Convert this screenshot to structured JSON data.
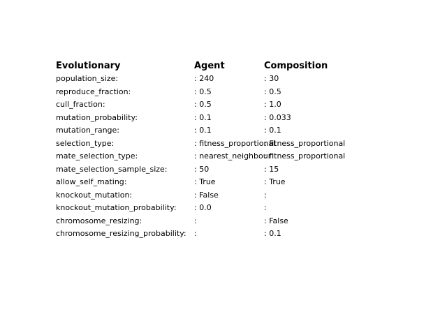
{
  "headers": [
    "Evolutionary",
    "Agent",
    "Composition"
  ],
  "rows": [
    {
      "key": "population_size:",
      "agent": ": 240",
      "composition": ": 30"
    },
    {
      "key": "reproduce_fraction:",
      "agent": ": 0.5",
      "composition": ": 0.5"
    },
    {
      "key": "cull_fraction:",
      "agent": ": 0.5",
      "composition": ": 1.0"
    },
    {
      "key": "mutation_probability:",
      "agent": ": 0.1",
      "composition": ": 0.033"
    },
    {
      "key": "mutation_range:",
      "agent": ": 0.1",
      "composition": ": 0.1"
    },
    {
      "key": "selection_type:",
      "agent": ": fitness_proportional",
      "composition": ": fitness_proportional"
    },
    {
      "key": "mate_selection_type:",
      "agent": ": nearest_neighbour",
      "composition": ": fitness_proportional"
    },
    {
      "key": "mate_selection_sample_size:",
      "agent": ": 50",
      "composition": ": 15"
    },
    {
      "key": "allow_self_mating:",
      "agent": ": True",
      "composition": ": True"
    },
    {
      "key": "knockout_mutation:",
      "agent": ": False",
      "composition": ":"
    },
    {
      "key": "knockout_mutation_probability:",
      "agent": ": 0.0",
      "composition": ":"
    },
    {
      "key": "chromosome_resizing:",
      "agent": ":",
      "composition": ": False"
    },
    {
      "key": "chromosome_resizing_probability:",
      "agent": ":",
      "composition": ": 0.1"
    }
  ]
}
